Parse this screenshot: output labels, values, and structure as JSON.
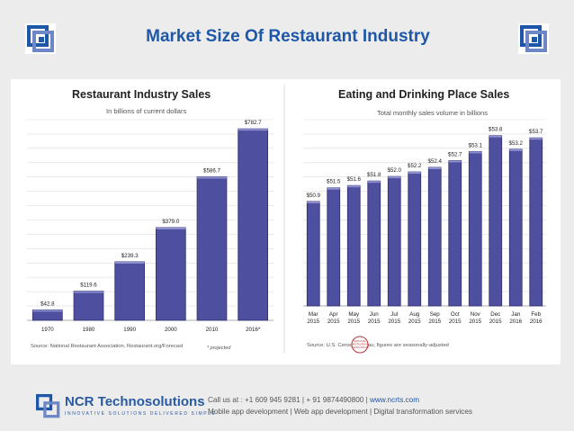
{
  "slide": {
    "title": "Market Size Of Restaurant Industry"
  },
  "chart_data": [
    {
      "type": "bar",
      "title": "Restaurant Industry Sales",
      "subtitle": "In billions of current dollars",
      "categories": [
        "1970",
        "1980",
        "1990",
        "2000",
        "2010",
        "2016*"
      ],
      "values": [
        42.8,
        119.6,
        239.3,
        379.0,
        586.7,
        782.7
      ],
      "value_labels": [
        "$42.8",
        "$119.6",
        "$239.3",
        "$379.0",
        "$586.7",
        "$782.7"
      ],
      "ylim": [
        0,
        820
      ],
      "note": "* projected",
      "source": "Source: National Restaurant Association, Restaurant.org/Forecast"
    },
    {
      "type": "bar",
      "title": "Eating and Drinking Place Sales",
      "subtitle": "Total monthly sales volume in billions",
      "categories": [
        [
          "Mar",
          "2015"
        ],
        [
          "Apr",
          "2015"
        ],
        [
          "May",
          "2015"
        ],
        [
          "Jun",
          "2015"
        ],
        [
          "Jul",
          "2015"
        ],
        [
          "Aug",
          "2015"
        ],
        [
          "Sep",
          "2015"
        ],
        [
          "Oct",
          "2015"
        ],
        [
          "Nov",
          "2015"
        ],
        [
          "Dec",
          "2015"
        ],
        [
          "Jan",
          "2016"
        ],
        [
          "Feb",
          "2016"
        ]
      ],
      "values": [
        50.9,
        51.5,
        51.6,
        51.8,
        52.0,
        52.2,
        52.4,
        52.7,
        53.1,
        53.8,
        53.2,
        53.7
      ],
      "value_labels": [
        "$50.9",
        "$51.5",
        "$51.6",
        "$51.8",
        "$52.0",
        "$52.2",
        "$52.4",
        "$52.7",
        "$53.1",
        "$53.8",
        "$53.2",
        "$53.7"
      ],
      "ylim": [
        46.3,
        54.5
      ],
      "source": "Source: U.S. Census Bureau; figures are seasonally-adjusted",
      "badge": [
        "NATIONAL",
        "RESTAURANT",
        "ASSOCIATION"
      ]
    }
  ],
  "footer": {
    "company": "NCR Technosolutions",
    "tagline": "INNOVATIVE SOLUTIONS DELIVERED SIMPLE",
    "contact_prefix": "Call us at : +1 609 945 9281  |  + 91 9874490800  |",
    "website": "www.ncrts.com",
    "services": "Mobile app development |  Web app development | Digital transformation services"
  },
  "colors": {
    "title": "#1e57a8",
    "bar": "#4e4f9e",
    "bar_dark": "#2e2f6e",
    "grid": "#dcdcdc"
  }
}
